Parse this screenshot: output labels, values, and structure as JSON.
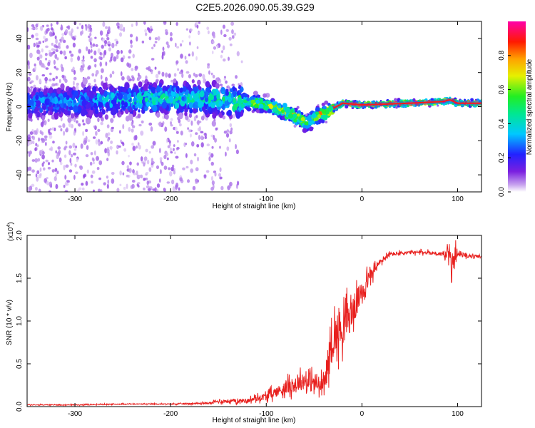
{
  "title": "C2E5.2026.090.05.39.G29",
  "chart_data": [
    {
      "type": "heatmap",
      "name": "spectrogram",
      "xlabel": "Height of straight line (km)",
      "ylabel": "Frequency (Hz)",
      "xlim": [
        -350,
        125
      ],
      "ylim": [
        -50,
        50
      ],
      "xticks": [
        "-300",
        "-200",
        "-100",
        "0",
        "100"
      ],
      "xtick_values": [
        -300,
        -200,
        -100,
        0,
        100
      ],
      "yticks": [
        "-40",
        "-20",
        "0",
        "20",
        "40"
      ],
      "ytick_values": [
        -40,
        -20,
        0,
        20,
        40
      ],
      "colorbar": {
        "label": "Normalized spectral amplitude",
        "range": [
          0,
          1
        ],
        "ticks": [
          "0.0",
          "0.2",
          "0.4",
          "0.6",
          "0.8"
        ],
        "tick_values": [
          0.0,
          0.2,
          0.4,
          0.6,
          0.8
        ]
      },
      "ridge": {
        "description": "frequency of peak spectral amplitude vs height",
        "x": [
          -350,
          -300,
          -250,
          -200,
          -150,
          -125,
          -100,
          -80,
          -65,
          -58,
          -45,
          -30,
          -20,
          0,
          50,
          85,
          92,
          100,
          125
        ],
        "y": [
          2,
          3,
          4,
          5,
          4,
          3,
          1,
          -3,
          -7,
          -10,
          -5,
          -1,
          2,
          1,
          2,
          3,
          4,
          2,
          2
        ],
        "amplitude": [
          0.3,
          0.32,
          0.38,
          0.45,
          0.45,
          0.55,
          0.6,
          0.7,
          0.7,
          0.55,
          0.75,
          0.8,
          0.85,
          0.9,
          0.95,
          0.95,
          0.9,
          0.95,
          0.95
        ]
      },
      "noise_region_x": [
        -350,
        -125
      ]
    },
    {
      "type": "line",
      "name": "snr",
      "xlabel": "Height of straight line (km)",
      "ylabel": "SNR (10 * v/v)",
      "yscale_label": "(x10",
      "yscale_exp": "4",
      "yscale_close": ")",
      "xlim": [
        -350,
        125
      ],
      "ylim": [
        0,
        2.0
      ],
      "xticks": [
        "-300",
        "-200",
        "-100",
        "0",
        "100"
      ],
      "xtick_values": [
        -300,
        -200,
        -100,
        0,
        100
      ],
      "yticks": [
        "0.0",
        "0.5",
        "1.0",
        "1.5",
        "2.0"
      ],
      "ytick_values": [
        0.0,
        0.5,
        1.0,
        1.5,
        2.0
      ],
      "line_color": "#e8201e",
      "envelope": {
        "x": [
          -350,
          -300,
          -250,
          -200,
          -160,
          -150,
          -120,
          -100,
          -80,
          -60,
          -50,
          -40,
          -35,
          -30,
          -20,
          -10,
          0,
          10,
          20,
          30,
          50,
          70,
          85,
          92,
          95,
          97,
          100,
          110,
          125
        ],
        "y": [
          0.02,
          0.02,
          0.03,
          0.03,
          0.04,
          0.06,
          0.07,
          0.12,
          0.22,
          0.3,
          0.28,
          0.22,
          0.55,
          0.8,
          0.95,
          1.1,
          1.35,
          1.55,
          1.7,
          1.78,
          1.8,
          1.8,
          1.78,
          1.75,
          1.6,
          1.8,
          1.78,
          1.76,
          1.75
        ],
        "noise_amplitude": [
          0.01,
          0.01,
          0.01,
          0.01,
          0.02,
          0.04,
          0.05,
          0.08,
          0.15,
          0.2,
          0.25,
          0.2,
          0.35,
          0.45,
          0.45,
          0.35,
          0.25,
          0.15,
          0.08,
          0.05,
          0.04,
          0.04,
          0.05,
          0.2,
          0.3,
          0.2,
          0.05,
          0.04,
          0.03
        ]
      }
    }
  ],
  "colors": {
    "axis": "#000000",
    "snr_line": "#e8201e"
  }
}
